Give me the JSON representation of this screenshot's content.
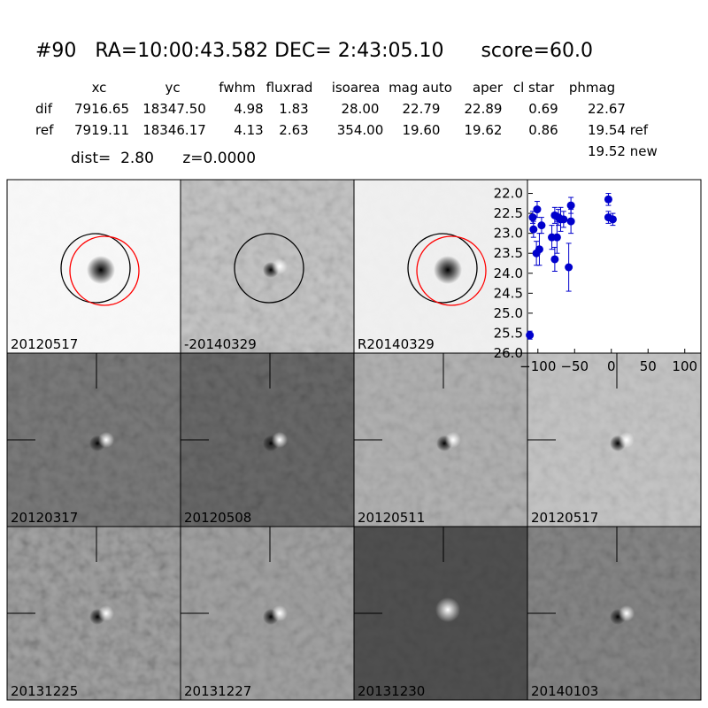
{
  "header": {
    "title": "#90   RA=10:00:43.582 DEC= 2:43:05.10      score=60.0",
    "dist": "dist=  2.80      z=0.0000"
  },
  "table": {
    "columns": [
      "xc",
      "yc",
      "fwhm",
      "fluxrad",
      "isoarea",
      "mag auto",
      "aper",
      "cl star",
      "phmag"
    ],
    "rows": [
      [
        "dif",
        "7916.65",
        "18347.50",
        "4.98",
        "1.83",
        "28.00",
        "22.79",
        "22.89",
        "0.69",
        "22.67"
      ],
      [
        "ref",
        "7919.11",
        "18346.17",
        "4.13",
        "2.63",
        "354.00",
        "19.60",
        "19.62",
        "0.86",
        "19.54 ref"
      ]
    ],
    "extra": "19.52 new"
  },
  "panels": [
    {
      "label": "20120517"
    },
    {
      "label": "-20140329"
    },
    {
      "label": "R20140329"
    },
    {
      "label": "20120317"
    },
    {
      "label": "20120508"
    },
    {
      "label": "20120511"
    },
    {
      "label": "20120517",
      "color": "#ff0000"
    },
    {
      "label": "20131225"
    },
    {
      "label": "20131227"
    },
    {
      "label": "20131230"
    },
    {
      "label": "20140103"
    }
  ],
  "light_curve": {
    "type": "scatter",
    "color": "#0000cc",
    "y_inverted": true,
    "x": [
      -111,
      -107,
      -106,
      -101,
      -102,
      -98,
      -95,
      -81,
      -77,
      -77,
      -74,
      -72,
      -69,
      -65,
      -58,
      -55,
      -55,
      -4,
      -4,
      2
    ],
    "y": [
      25.55,
      22.6,
      22.9,
      22.4,
      23.5,
      23.4,
      22.8,
      23.1,
      22.55,
      23.65,
      23.1,
      22.6,
      22.65,
      22.65,
      23.85,
      22.3,
      22.7,
      22.15,
      22.6,
      22.65
    ],
    "errors": [
      0.1,
      0.15,
      0.2,
      0.2,
      0.3,
      0.4,
      0.2,
      0.3,
      0.2,
      0.3,
      0.4,
      0.2,
      0.3,
      0.2,
      0.6,
      0.2,
      0.3,
      0.15,
      0.15,
      0.15
    ],
    "xlim": [
      -113,
      122
    ],
    "ylim": [
      21.7,
      26.0
    ],
    "xticks": [
      {
        "value": -100,
        "label": "−100"
      },
      {
        "value": -50,
        "label": "−50"
      },
      0,
      50,
      100
    ],
    "yticks": [
      {
        "value": 22,
        "label": "22.0"
      },
      {
        "value": 22.5,
        "label": "22.5"
      },
      {
        "value": 23,
        "label": "23.0"
      },
      {
        "value": 23.5,
        "label": "23.5"
      },
      {
        "value": 24,
        "label": "24.0"
      },
      {
        "value": 24.5,
        "label": "24.5"
      },
      {
        "value": 25,
        "label": "25.0"
      },
      {
        "value": 25.5,
        "label": "25.5"
      },
      {
        "value": 26,
        "label": "26.0"
      }
    ]
  }
}
